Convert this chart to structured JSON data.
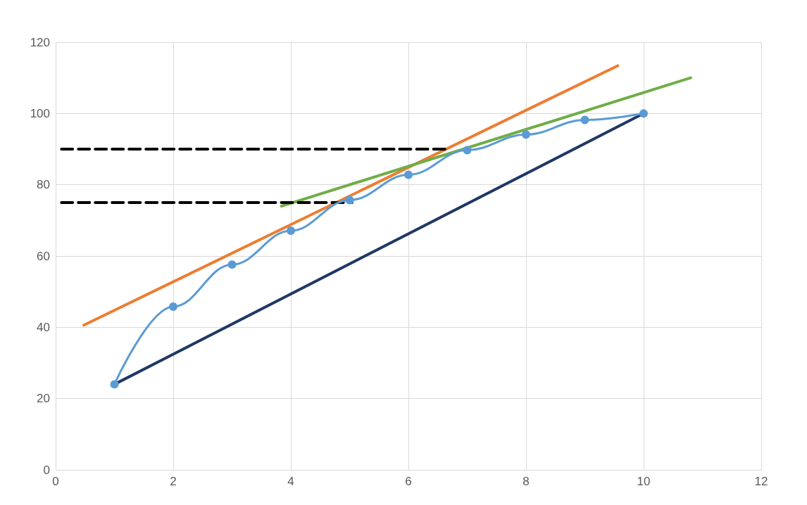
{
  "chart_data": {
    "type": "line",
    "xlim": [
      0,
      12
    ],
    "xticks": [
      0,
      2,
      4,
      6,
      8,
      10,
      12
    ],
    "ylim": [
      0,
      120
    ],
    "yticks": [
      0,
      20,
      40,
      60,
      80,
      100,
      120
    ],
    "grid": true,
    "series": [
      {
        "color": "#1f3864",
        "x": [
          1,
          10
        ],
        "values": [
          24,
          100
        ],
        "marker": "none",
        "line_style": "solid"
      },
      {
        "color": "#ed7d31",
        "x": [
          0.48,
          9.56
        ],
        "values": [
          40.6,
          113.4
        ],
        "marker": "none",
        "line_style": "solid"
      },
      {
        "color": "#70ad47",
        "x": [
          3.84,
          10.8
        ],
        "values": [
          74,
          110
        ],
        "marker": "none",
        "line_style": "solid"
      },
      {
        "color": "#000000",
        "x": [
          0.1,
          6.66
        ],
        "values": [
          90,
          90
        ],
        "marker": "none",
        "line_style": "dashed"
      },
      {
        "color": "#000000",
        "x": [
          0.1,
          5.04
        ],
        "values": [
          75,
          75
        ],
        "marker": "none",
        "line_style": "dashed"
      },
      {
        "color": "#5b9bd5",
        "x": [
          1,
          2,
          3,
          4,
          5,
          6,
          7,
          8,
          9,
          10
        ],
        "values": [
          24,
          45.8,
          57.6,
          67.1,
          75.7,
          82.8,
          89.7,
          94.1,
          98.2,
          100
        ],
        "marker": "circle",
        "line_style": "solid"
      }
    ]
  }
}
